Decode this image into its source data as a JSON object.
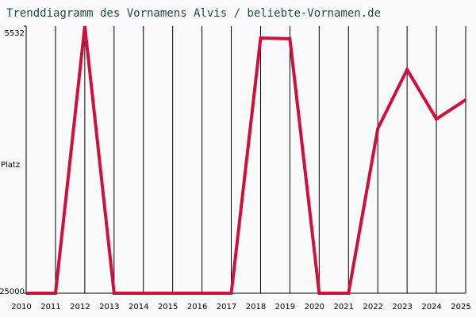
{
  "chart_data": {
    "type": "line",
    "title": "Trenddiagramm des Vornamens Alvis / beliebte-Vornamen.de",
    "y_label": "Platz",
    "x": [
      2010,
      2011,
      2012,
      2013,
      2014,
      2015,
      2016,
      2017,
      2018,
      2019,
      2020,
      2021,
      2022,
      2023,
      2024,
      2025
    ],
    "xlim": [
      2010,
      2025
    ],
    "xticks": [
      2010,
      2011,
      2012,
      2013,
      2014,
      2015,
      2016,
      2017,
      2018,
      2019,
      2020,
      2021,
      2022,
      2023,
      2024,
      2025
    ],
    "ylim": [
      25000,
      5532
    ],
    "yticks": [
      5532,
      25000
    ],
    "grid": true,
    "series": [
      {
        "name": "Alvis",
        "color": "#d0103a",
        "values": [
          25000,
          25000,
          5532,
          25000,
          25000,
          25000,
          25000,
          25000,
          6400,
          6450,
          25000,
          25000,
          13000,
          8700,
          12300,
          10900
        ]
      }
    ]
  }
}
